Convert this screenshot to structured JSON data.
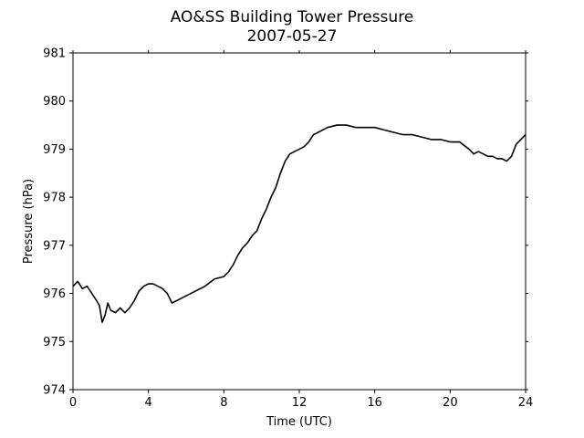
{
  "chart_data": {
    "type": "line",
    "title": "AO&SS Building Tower Pressure",
    "subtitle": "2007-05-27",
    "xlabel": "Time (UTC)",
    "ylabel": "Pressure (hPa)",
    "xlim": [
      0,
      24
    ],
    "ylim": [
      974,
      981
    ],
    "xticks": [
      0,
      4,
      8,
      12,
      16,
      20,
      24
    ],
    "yticks": [
      974,
      975,
      976,
      977,
      978,
      979,
      980,
      981
    ],
    "grid": false,
    "line_color": "#000000",
    "series": [
      {
        "x": [
          0,
          0.25,
          0.5,
          0.75,
          1.0,
          1.25,
          1.4,
          1.55,
          1.7,
          1.85,
          2.0,
          2.25,
          2.5,
          2.75,
          3.0,
          3.25,
          3.5,
          3.75,
          4.0,
          4.25,
          4.5,
          4.75,
          5.0,
          5.25,
          5.5,
          5.75,
          6.0,
          6.5,
          7.0,
          7.5,
          8.0,
          8.25,
          8.5,
          8.75,
          9.0,
          9.25,
          9.5,
          9.75,
          10.0,
          10.25,
          10.5,
          10.75,
          11.0,
          11.25,
          11.5,
          11.75,
          12.0,
          12.25,
          12.5,
          12.75,
          13.0,
          13.5,
          14.0,
          14.5,
          15.0,
          15.5,
          16.0,
          16.5,
          17.0,
          17.5,
          18.0,
          18.5,
          19.0,
          19.5,
          20.0,
          20.5,
          21.0,
          21.25,
          21.5,
          21.75,
          22.0,
          22.25,
          22.5,
          22.75,
          23.0,
          23.25,
          23.5,
          23.75,
          24.0
        ],
        "y": [
          976.15,
          976.25,
          976.1,
          976.15,
          976.0,
          975.85,
          975.75,
          975.4,
          975.55,
          975.8,
          975.65,
          975.6,
          975.7,
          975.6,
          975.7,
          975.85,
          976.05,
          976.15,
          976.2,
          976.2,
          976.15,
          976.1,
          976.0,
          975.8,
          975.85,
          975.9,
          975.95,
          976.05,
          976.15,
          976.3,
          976.35,
          976.45,
          976.6,
          976.8,
          976.95,
          977.05,
          977.2,
          977.3,
          977.55,
          977.75,
          978.0,
          978.2,
          978.5,
          978.75,
          978.9,
          978.95,
          979.0,
          979.05,
          979.15,
          979.3,
          979.35,
          979.45,
          979.5,
          979.5,
          979.45,
          979.45,
          979.45,
          979.4,
          979.35,
          979.3,
          979.3,
          979.25,
          979.2,
          979.2,
          979.15,
          979.15,
          979.0,
          978.9,
          978.95,
          978.9,
          978.85,
          978.85,
          978.8,
          978.8,
          978.75,
          978.85,
          979.1,
          979.2,
          979.3
        ]
      }
    ]
  }
}
